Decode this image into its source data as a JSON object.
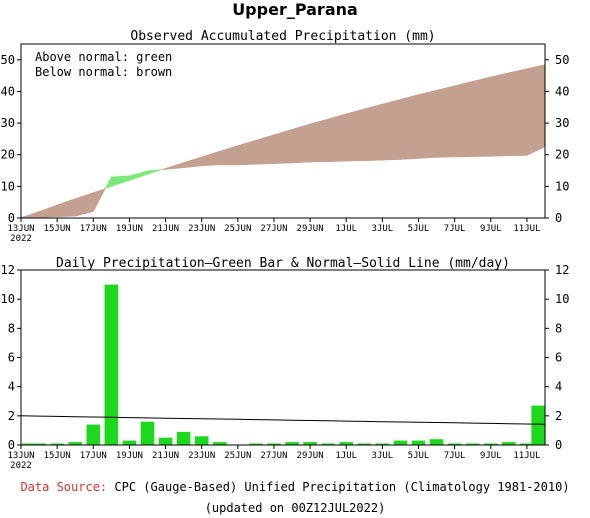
{
  "title": "Upper_Parana",
  "chart_data": [
    {
      "type": "area",
      "title": "Observed Accumulated Precipitation (mm)",
      "legend_lines": [
        "Above normal: green",
        "Below normal: brown"
      ],
      "legend_placement": "top-left",
      "colors": {
        "above": "#7de87a",
        "below": "#c4a091"
      },
      "x": [
        "13JUN",
        "14JUN",
        "15JUN",
        "16JUN",
        "17JUN",
        "18JUN",
        "19JUN",
        "20JUN",
        "21JUN",
        "22JUN",
        "23JUN",
        "24JUN",
        "25JUN",
        "26JUN",
        "27JUN",
        "28JUN",
        "29JUN",
        "30JUN",
        "1JUL",
        "2JUL",
        "3JUL",
        "4JUL",
        "5JUL",
        "6JUL",
        "7JUL",
        "8JUL",
        "9JUL",
        "10JUL",
        "11JUL",
        "12JUL"
      ],
      "xtick_labels": [
        "13JUN\n2022",
        "15JUN",
        "17JUN",
        "19JUN",
        "21JUN",
        "23JUN",
        "25JUN",
        "27JUN",
        "29JUN",
        "1JUL",
        "3JUL",
        "5JUL",
        "7JUL",
        "9JUL",
        "11JUL"
      ],
      "ylim": [
        0,
        55
      ],
      "yticks": [
        0,
        10,
        20,
        30,
        40,
        50
      ],
      "series": [
        {
          "role": "observed",
          "values": [
            0.1,
            0.2,
            0.4,
            0.6,
            2.0,
            13.0,
            13.3,
            14.9,
            15.4,
            15.9,
            16.5,
            16.8,
            16.8,
            17.0,
            17.2,
            17.4,
            17.7,
            17.8,
            18.0,
            18.1,
            18.3,
            18.5,
            18.8,
            19.2,
            19.3,
            19.4,
            19.5,
            19.7,
            19.8,
            22.5
          ]
        },
        {
          "role": "normal",
          "values": [
            0.1,
            2.1,
            4.1,
            6.1,
            8.0,
            10.0,
            11.9,
            13.8,
            15.7,
            17.5,
            19.3,
            21.1,
            22.9,
            24.6,
            26.3,
            28.0,
            29.7,
            31.3,
            32.9,
            34.5,
            36.0,
            37.5,
            39.0,
            40.4,
            41.8,
            43.2,
            44.6,
            45.9,
            47.2,
            48.5
          ]
        }
      ]
    },
    {
      "type": "bar",
      "title": "Daily Precipitation—Green Bar & Normal—Solid Line (mm/day)",
      "colors": {
        "bar": "#1ed81e",
        "line": "#000000"
      },
      "x": [
        "13JUN",
        "14JUN",
        "15JUN",
        "16JUN",
        "17JUN",
        "18JUN",
        "19JUN",
        "20JUN",
        "21JUN",
        "22JUN",
        "23JUN",
        "24JUN",
        "25JUN",
        "26JUN",
        "27JUN",
        "28JUN",
        "29JUN",
        "30JUN",
        "1JUL",
        "2JUL",
        "3JUL",
        "4JUL",
        "5JUL",
        "6JUL",
        "7JUL",
        "8JUL",
        "9JUL",
        "10JUL",
        "11JUL",
        "12JUL"
      ],
      "xtick_labels": [
        "13JUN\n2022",
        "15JUN",
        "17JUN",
        "19JUN",
        "21JUN",
        "23JUN",
        "25JUN",
        "27JUN",
        "29JUN",
        "1JUL",
        "3JUL",
        "5JUL",
        "7JUL",
        "9JUL",
        "11JUL"
      ],
      "ylim": [
        0,
        12
      ],
      "yticks": [
        0,
        2,
        4,
        6,
        8,
        10,
        12
      ],
      "values": [
        0.1,
        0.1,
        0.1,
        0.2,
        1.4,
        11.0,
        0.3,
        1.6,
        0.5,
        0.9,
        0.6,
        0.2,
        0.0,
        0.1,
        0.1,
        0.2,
        0.2,
        0.1,
        0.2,
        0.1,
        0.1,
        0.3,
        0.3,
        0.4,
        0.1,
        0.1,
        0.1,
        0.2,
        0.1,
        2.7
      ],
      "normal": [
        2.0,
        1.98,
        1.96,
        1.94,
        1.92,
        1.9,
        1.88,
        1.86,
        1.84,
        1.82,
        1.8,
        1.78,
        1.76,
        1.74,
        1.72,
        1.7,
        1.68,
        1.66,
        1.64,
        1.62,
        1.6,
        1.58,
        1.56,
        1.54,
        1.52,
        1.5,
        1.48,
        1.46,
        1.44,
        1.42
      ]
    }
  ],
  "footer": {
    "source_label": "Data Source:",
    "source_text": "CPC (Gauge-Based) Unified Precipitation (Climatology 1981-2010)",
    "updated": "(updated on 00Z12JUL2022)",
    "source_label_color": "#e03030"
  }
}
